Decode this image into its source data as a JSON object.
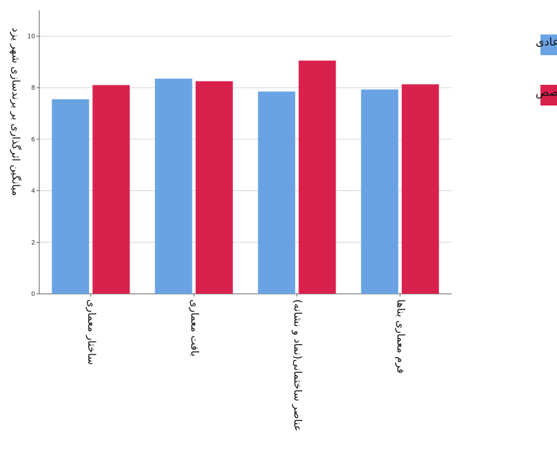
{
  "chart_data": {
    "type": "bar",
    "ylabel": "میانگین اثرگذاری بر برندسازی شهر یزد",
    "xlabel": "",
    "ylim": [
      0,
      11
    ],
    "yticks": [
      0,
      2,
      4,
      6,
      8,
      10
    ],
    "grid": true,
    "legend_position": "top-right",
    "categories": [
      "ساختار معماری",
      "بافت معماری",
      "عناصر ساختمانی(نماد و نشانه)",
      "فرم معماری بناها"
    ],
    "series": [
      {
        "name": "عادی",
        "color": "#6aa3e3",
        "values": [
          7.55,
          8.35,
          7.85,
          7.93
        ]
      },
      {
        "name": "متخصص",
        "color": "#d9214e",
        "values": [
          8.1,
          8.25,
          9.05,
          8.13
        ]
      }
    ]
  }
}
